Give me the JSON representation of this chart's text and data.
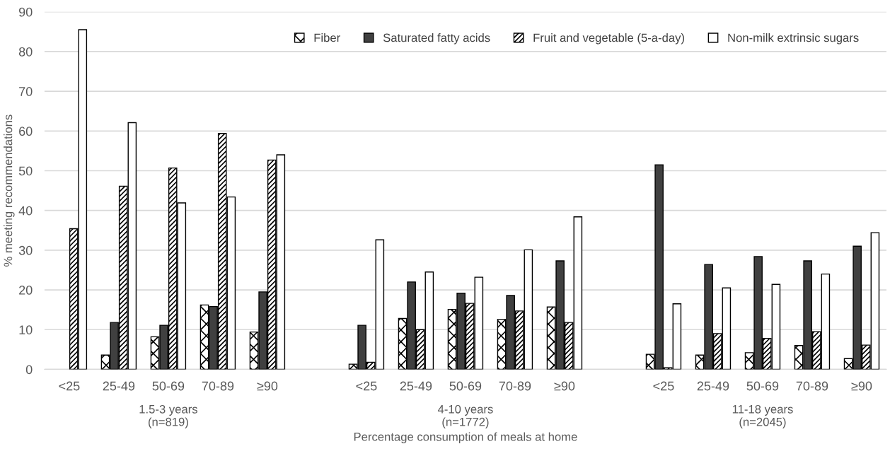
{
  "chart_data": {
    "type": "bar",
    "xlabel": "Percentage consumption of meals at home",
    "ylabel": "% meeting recommendations",
    "categories": [
      "<25",
      "25-49",
      "50-69",
      "70-89",
      "≥90",
      null,
      "<25",
      "25-49",
      "50-69",
      "70-89",
      "≥90",
      null,
      "<25",
      "25-49",
      "50-69",
      "70-89",
      "≥90"
    ],
    "series": [
      {
        "name": "Fiber",
        "color": "#000000",
        "values": [
          null,
          3.6,
          8.2,
          16.2,
          9.4,
          null,
          1.3,
          12.8,
          15.1,
          12.6,
          15.7,
          null,
          3.8,
          3.6,
          4.2,
          6.0,
          2.7
        ]
      },
      {
        "name": "Saturated fatty acids",
        "color": "#404040",
        "values": [
          null,
          11.8,
          11.1,
          15.8,
          19.5,
          null,
          11.1,
          22.0,
          19.2,
          18.6,
          27.3,
          null,
          51.5,
          26.4,
          28.4,
          27.3,
          31.0
        ]
      },
      {
        "name": "Fruit and vegetable (5-a-day)",
        "color": "#000000",
        "values": [
          35.4,
          46.1,
          50.7,
          59.4,
          52.7,
          null,
          1.8,
          10.0,
          16.6,
          14.7,
          11.8,
          null,
          0.4,
          9.0,
          7.8,
          9.5,
          6.1
        ]
      },
      {
        "name": "Non-milk extrinsic sugars",
        "color": "#ffffff",
        "values": [
          85.5,
          62.1,
          41.9,
          43.4,
          54.0,
          null,
          32.6,
          24.5,
          23.2,
          30.1,
          38.4,
          null,
          16.5,
          20.5,
          21.4,
          24.0,
          34.4
        ]
      }
    ],
    "annotations": [
      "1.5-3 years\n(n=819)",
      "4-10 years\n(n=1772)",
      "11-18 years\n(n=2045)"
    ],
    "ylim": [
      0,
      90
    ],
    "yticks": [
      0,
      10,
      20,
      30,
      40,
      50,
      60,
      70,
      80,
      90
    ],
    "grid": "y",
    "legend": "top right"
  }
}
